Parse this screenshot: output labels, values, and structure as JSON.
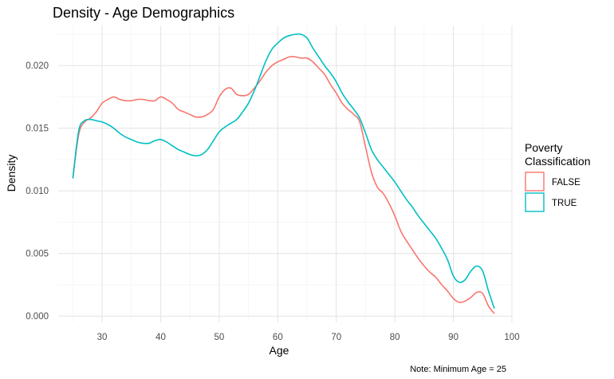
{
  "chart_data": {
    "type": "line",
    "title": "Density - Age Demographics",
    "xlabel": "Age",
    "ylabel": "Density",
    "caption": "Note: Minimum Age = 25",
    "xlim": [
      22.5,
      100
    ],
    "ylim": [
      -0.0005,
      0.0232
    ],
    "x_ticks": [
      30,
      40,
      50,
      60,
      70,
      80,
      90,
      100
    ],
    "x_tick_labels": [
      "30",
      "40",
      "50",
      "60",
      "70",
      "80",
      "90",
      "100"
    ],
    "y_ticks": [
      0.0,
      0.005,
      0.01,
      0.015,
      0.02
    ],
    "y_tick_labels": [
      "0.000",
      "0.005",
      "0.010",
      "0.015",
      "0.020"
    ],
    "grid": true,
    "legend": {
      "title_lines": [
        "Poverty",
        "Classification"
      ],
      "placement": "right"
    },
    "series": [
      {
        "name": "FALSE",
        "color": "#F8766D",
        "x": [
          25,
          26,
          27,
          28,
          29,
          30,
          31,
          32,
          33,
          34,
          35,
          36,
          37,
          38,
          39,
          40,
          41,
          42,
          43,
          44,
          45,
          46,
          47,
          48,
          49,
          50,
          51,
          52,
          53,
          54,
          55,
          56,
          57,
          58,
          59,
          60,
          61,
          62,
          63,
          64,
          65,
          66,
          67,
          68,
          69,
          70,
          71,
          72,
          73,
          74,
          75,
          76,
          77,
          78,
          79,
          80,
          81,
          82,
          83,
          84,
          85,
          86,
          87,
          88,
          89,
          90,
          91,
          92,
          93,
          94,
          95,
          96,
          97
        ],
        "y": [
          0.011,
          0.0145,
          0.0155,
          0.0158,
          0.0163,
          0.017,
          0.0173,
          0.0175,
          0.0173,
          0.0172,
          0.0172,
          0.0173,
          0.0173,
          0.0172,
          0.0172,
          0.0175,
          0.0173,
          0.017,
          0.0165,
          0.0163,
          0.0161,
          0.0159,
          0.0159,
          0.0161,
          0.0165,
          0.0175,
          0.0181,
          0.0182,
          0.0177,
          0.0176,
          0.0177,
          0.0182,
          0.0188,
          0.0195,
          0.02,
          0.0203,
          0.0205,
          0.0207,
          0.0207,
          0.0206,
          0.0206,
          0.0203,
          0.0198,
          0.0193,
          0.0185,
          0.0178,
          0.017,
          0.0165,
          0.0161,
          0.0155,
          0.0135,
          0.0115,
          0.0103,
          0.0098,
          0.009,
          0.008,
          0.0068,
          0.006,
          0.0053,
          0.0046,
          0.004,
          0.0035,
          0.0031,
          0.0025,
          0.002,
          0.0014,
          0.0011,
          0.0012,
          0.0015,
          0.0019,
          0.0018,
          0.0008,
          0.0002
        ]
      },
      {
        "name": "TRUE",
        "color": "#00BFC4",
        "x": [
          25,
          26,
          27,
          28,
          29,
          30,
          31,
          32,
          33,
          34,
          35,
          36,
          37,
          38,
          39,
          40,
          41,
          42,
          43,
          44,
          45,
          46,
          47,
          48,
          49,
          50,
          51,
          52,
          53,
          54,
          55,
          56,
          57,
          58,
          59,
          60,
          61,
          62,
          63,
          64,
          65,
          66,
          67,
          68,
          69,
          70,
          71,
          72,
          73,
          74,
          75,
          76,
          77,
          78,
          79,
          80,
          81,
          82,
          83,
          84,
          85,
          86,
          87,
          88,
          89,
          90,
          91,
          92,
          93,
          94,
          95,
          96,
          97
        ],
        "y": [
          0.011,
          0.0148,
          0.0156,
          0.0157,
          0.0156,
          0.0155,
          0.0153,
          0.015,
          0.0146,
          0.0143,
          0.0141,
          0.0139,
          0.0138,
          0.0138,
          0.014,
          0.0141,
          0.0139,
          0.0136,
          0.0133,
          0.0131,
          0.0129,
          0.0128,
          0.0129,
          0.0133,
          0.014,
          0.0147,
          0.0151,
          0.0154,
          0.0157,
          0.0163,
          0.017,
          0.018,
          0.0192,
          0.0204,
          0.0213,
          0.0218,
          0.0222,
          0.0224,
          0.0225,
          0.0225,
          0.0222,
          0.0214,
          0.0207,
          0.02,
          0.0194,
          0.0187,
          0.0178,
          0.0171,
          0.0165,
          0.0158,
          0.0146,
          0.0133,
          0.0125,
          0.0119,
          0.0113,
          0.0107,
          0.01,
          0.0093,
          0.0087,
          0.008,
          0.0074,
          0.0068,
          0.0062,
          0.0054,
          0.0045,
          0.0032,
          0.0027,
          0.0029,
          0.0036,
          0.004,
          0.0036,
          0.002,
          0.0006
        ]
      }
    ]
  }
}
